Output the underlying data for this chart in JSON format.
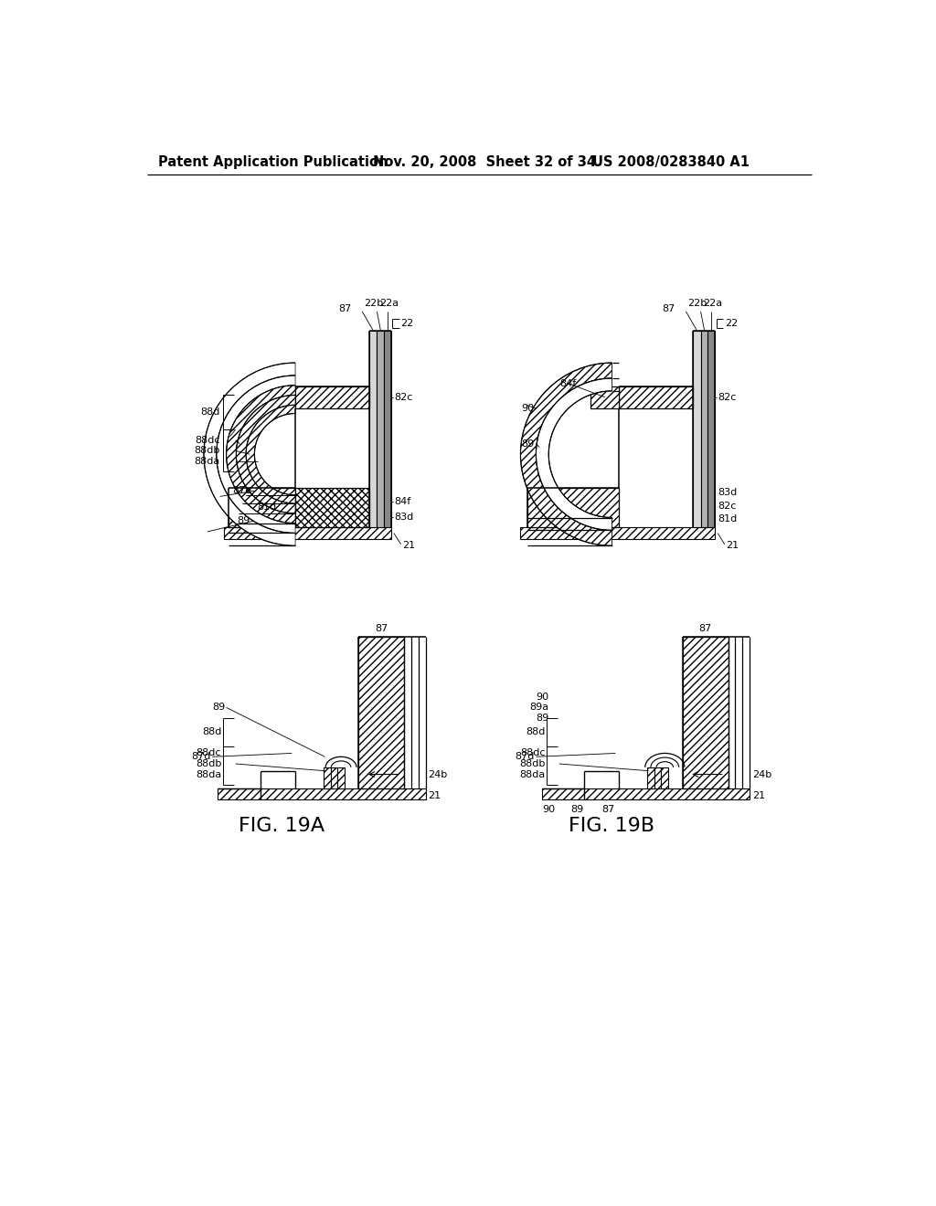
{
  "header_left": "Patent Application Publication",
  "header_mid": "Nov. 20, 2008  Sheet 32 of 34",
  "header_right": "US 2008/0283840 A1",
  "fig_a_label": "FIG. 19A",
  "fig_b_label": "FIG. 19B",
  "background_color": "#ffffff",
  "line_color": "#000000"
}
